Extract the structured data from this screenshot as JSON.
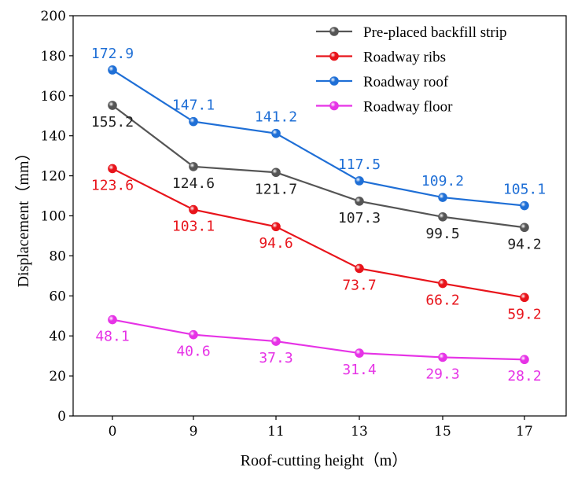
{
  "chart_data": {
    "type": "line",
    "title": "",
    "xlabel": "Roof-cutting height（m）",
    "ylabel": "Displacement（mm）",
    "categories": [
      "0",
      "9",
      "11",
      "13",
      "15",
      "17"
    ],
    "ylim": [
      0,
      200
    ],
    "yticks": [
      0,
      20,
      40,
      60,
      80,
      100,
      120,
      140,
      160,
      180,
      200
    ],
    "grid": false,
    "legend_position": "top-right",
    "series": [
      {
        "name": "Pre-placed backfill strip",
        "color": "#555555",
        "values": [
          155.2,
          124.6,
          121.7,
          107.3,
          99.5,
          94.2
        ],
        "labels": [
          "155.2",
          "124.6",
          "121.7",
          "107.3",
          "99.5",
          "94.2"
        ],
        "label_placement": "below"
      },
      {
        "name": "Roadway ribs",
        "color": "#e8141b",
        "values": [
          123.6,
          103.1,
          94.6,
          73.7,
          66.2,
          59.2
        ],
        "labels": [
          "123.6",
          "103.1",
          "94.6",
          "73.7",
          "66.2",
          "59.2"
        ],
        "label_placement": "below"
      },
      {
        "name": "Roadway roof",
        "color": "#1f6fd6",
        "values": [
          172.9,
          147.1,
          141.2,
          117.5,
          109.2,
          105.1
        ],
        "labels": [
          "172.9",
          "147.1",
          "141.2",
          "117.5",
          "109.2",
          "105.1"
        ],
        "label_placement": "above"
      },
      {
        "name": "Roadway floor",
        "color": "#e633e6",
        "values": [
          48.1,
          40.6,
          37.3,
          31.4,
          29.3,
          28.2
        ],
        "labels": [
          "48.1",
          "40.6",
          "37.3",
          "31.4",
          "29.3",
          "28.2"
        ],
        "label_placement": "below"
      }
    ]
  }
}
